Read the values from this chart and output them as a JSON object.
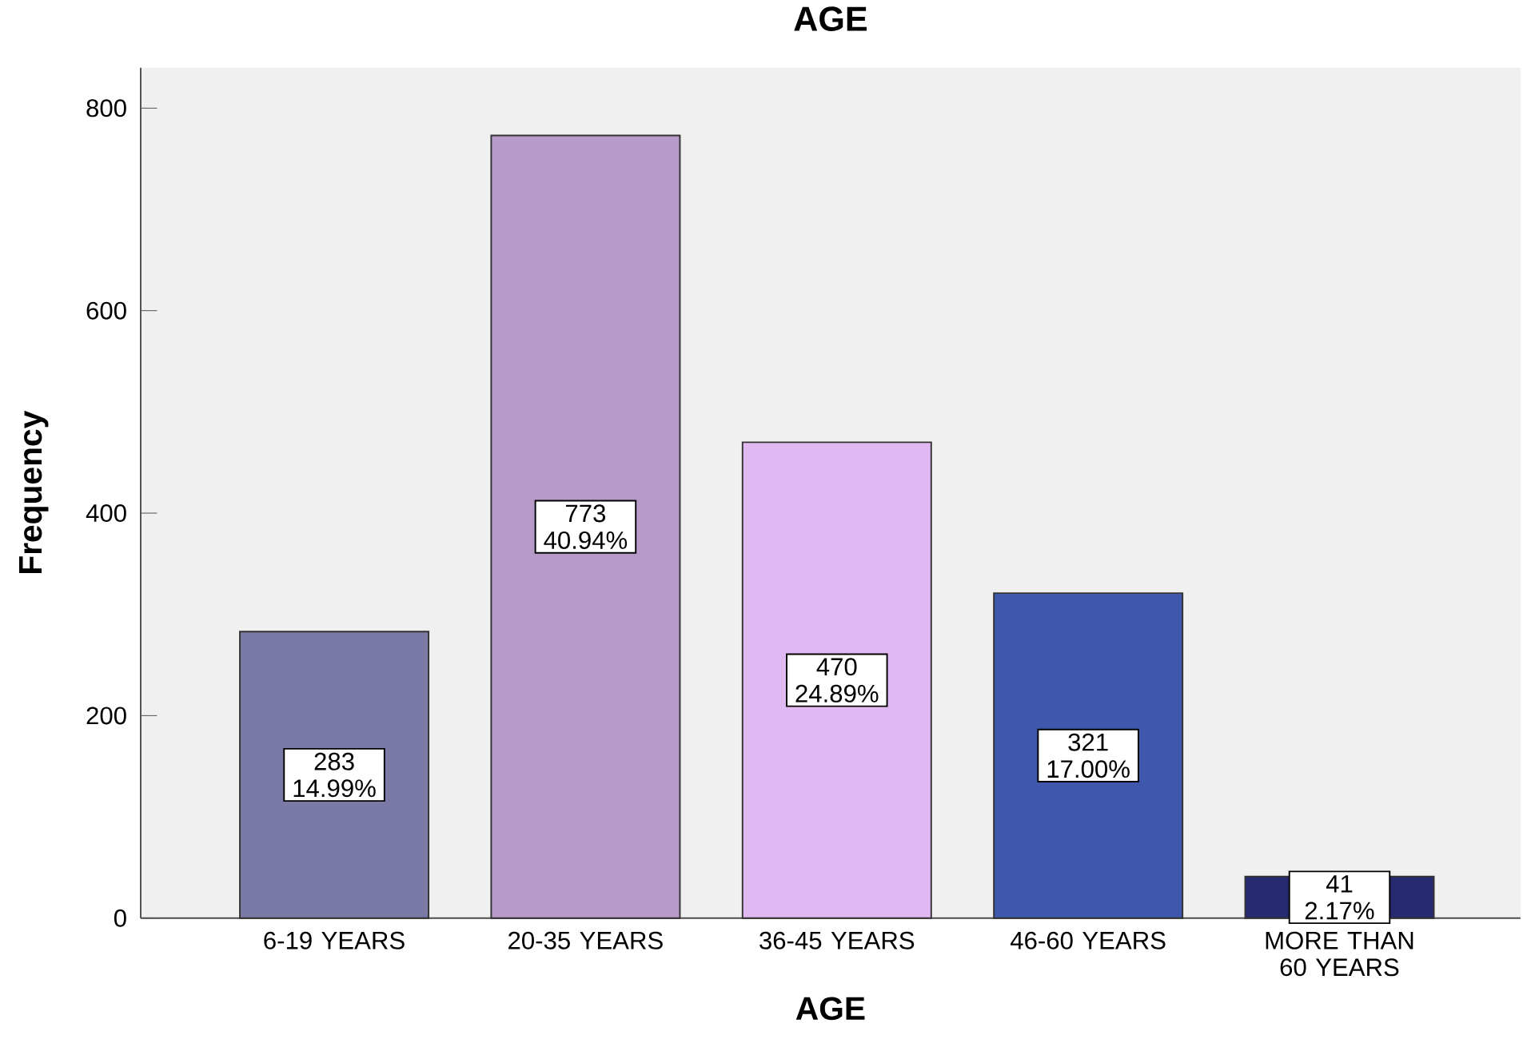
{
  "chart_data": {
    "type": "bar",
    "title": "AGE",
    "xlabel": "AGE",
    "ylabel": "Frequency",
    "categories": [
      "6-19 YEARS",
      "20-35 YEARS",
      "36-45 YEARS",
      "46-60 YEARS",
      "MORE THAN 60 YEARS"
    ],
    "values": [
      283,
      773,
      470,
      321,
      41
    ],
    "colors": [
      "#7b7aa6",
      "#b89ac9",
      "#e0b8f2",
      "#3f58ae",
      "#272a6e"
    ],
    "value_labels": [
      "283 14.99%",
      "773 40.94%",
      "470 24.89%",
      "321 17.00%",
      "41 2.17%"
    ],
    "ylim": [
      0,
      840
    ],
    "yticks": [
      0,
      200,
      400,
      600,
      800
    ]
  }
}
